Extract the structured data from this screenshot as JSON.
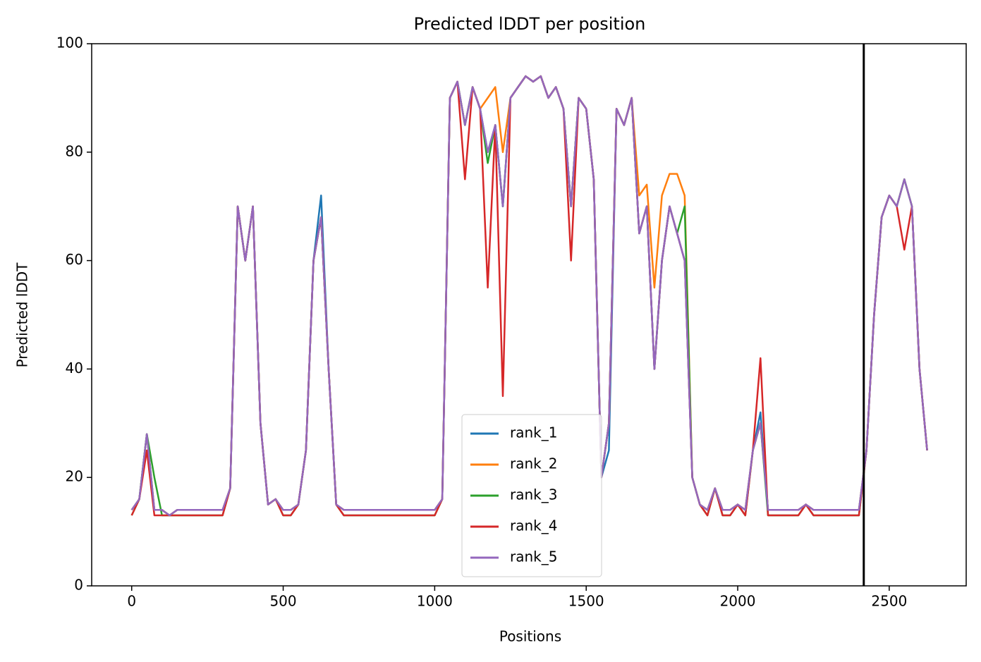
{
  "chart_data": {
    "type": "line",
    "title": "Predicted lDDT per position",
    "x_label": "Positions",
    "y_label": "Predicted lDDT",
    "x": [
      0,
      25,
      50,
      75,
      100,
      125,
      150,
      175,
      200,
      225,
      250,
      275,
      300,
      325,
      350,
      375,
      400,
      425,
      450,
      475,
      500,
      525,
      550,
      575,
      600,
      625,
      650,
      675,
      700,
      725,
      750,
      775,
      800,
      825,
      850,
      875,
      900,
      925,
      950,
      975,
      1000,
      1025,
      1050,
      1075,
      1100,
      1125,
      1150,
      1175,
      1200,
      1225,
      1250,
      1275,
      1300,
      1325,
      1350,
      1375,
      1400,
      1425,
      1450,
      1475,
      1500,
      1525,
      1550,
      1575,
      1600,
      1625,
      1650,
      1675,
      1700,
      1725,
      1750,
      1775,
      1800,
      1825,
      1850,
      1875,
      1900,
      1925,
      1950,
      1975,
      2000,
      2025,
      2050,
      2075,
      2100,
      2125,
      2150,
      2175,
      2200,
      2225,
      2250,
      2275,
      2300,
      2325,
      2350,
      2375,
      2400,
      2425,
      2450,
      2475,
      2500,
      2525,
      2550,
      2575,
      2600,
      2625
    ],
    "series": [
      {
        "name": "rank_1",
        "color": "#1f77b4",
        "values": [
          14,
          16,
          28,
          14,
          14,
          13,
          14,
          14,
          14,
          14,
          14,
          14,
          14,
          18,
          70,
          60,
          70,
          30,
          15,
          16,
          14,
          14,
          15,
          25,
          60,
          72,
          40,
          15,
          14,
          14,
          14,
          14,
          14,
          14,
          14,
          14,
          14,
          14,
          14,
          14,
          14,
          16,
          90,
          93,
          85,
          92,
          88,
          80,
          85,
          70,
          90,
          92,
          94,
          93,
          94,
          90,
          92,
          88,
          70,
          90,
          88,
          75,
          20,
          25,
          88,
          85,
          90,
          65,
          70,
          40,
          60,
          70,
          65,
          60,
          20,
          15,
          14,
          18,
          14,
          14,
          15,
          14,
          25,
          32,
          14,
          14,
          14,
          14,
          14,
          15,
          14,
          14,
          14,
          14,
          14,
          14,
          14,
          25,
          50,
          68,
          72,
          70,
          75,
          70,
          40,
          25
        ]
      },
      {
        "name": "rank_2",
        "color": "#ff7f0e",
        "values": [
          14,
          16,
          28,
          14,
          14,
          13,
          14,
          14,
          14,
          14,
          14,
          14,
          14,
          18,
          70,
          60,
          70,
          30,
          15,
          16,
          14,
          14,
          15,
          25,
          60,
          68,
          40,
          15,
          14,
          14,
          14,
          14,
          14,
          14,
          14,
          14,
          14,
          14,
          14,
          14,
          14,
          16,
          90,
          93,
          85,
          92,
          88,
          90,
          92,
          80,
          90,
          92,
          94,
          93,
          94,
          90,
          92,
          88,
          70,
          90,
          88,
          75,
          20,
          30,
          88,
          85,
          90,
          72,
          74,
          55,
          72,
          76,
          76,
          72,
          20,
          15,
          14,
          18,
          14,
          14,
          15,
          14,
          25,
          30,
          14,
          14,
          14,
          14,
          14,
          15,
          14,
          14,
          14,
          14,
          14,
          14,
          14,
          25,
          50,
          68,
          72,
          70,
          75,
          70,
          40,
          25
        ]
      },
      {
        "name": "rank_3",
        "color": "#2ca02c",
        "values": [
          13,
          16,
          28,
          20,
          13,
          13,
          13,
          13,
          13,
          13,
          13,
          13,
          13,
          18,
          70,
          60,
          70,
          30,
          15,
          16,
          13,
          13,
          15,
          25,
          60,
          68,
          40,
          15,
          13,
          13,
          13,
          13,
          13,
          13,
          13,
          13,
          13,
          13,
          13,
          13,
          13,
          16,
          90,
          93,
          85,
          92,
          88,
          78,
          85,
          70,
          90,
          92,
          94,
          93,
          94,
          90,
          92,
          88,
          70,
          90,
          88,
          75,
          20,
          30,
          88,
          85,
          90,
          65,
          70,
          40,
          60,
          70,
          65,
          70,
          20,
          15,
          13,
          18,
          13,
          13,
          15,
          13,
          25,
          30,
          13,
          13,
          13,
          13,
          13,
          15,
          13,
          13,
          13,
          13,
          13,
          13,
          13,
          25,
          50,
          68,
          72,
          70,
          75,
          70,
          40,
          25
        ]
      },
      {
        "name": "rank_4",
        "color": "#d62728",
        "values": [
          13,
          16,
          25,
          13,
          13,
          13,
          13,
          13,
          13,
          13,
          13,
          13,
          13,
          18,
          70,
          60,
          70,
          30,
          15,
          16,
          13,
          13,
          15,
          25,
          60,
          68,
          40,
          15,
          13,
          13,
          13,
          13,
          13,
          13,
          13,
          13,
          13,
          13,
          13,
          13,
          13,
          16,
          90,
          93,
          75,
          92,
          88,
          55,
          85,
          35,
          90,
          92,
          94,
          93,
          94,
          90,
          92,
          88,
          60,
          90,
          88,
          75,
          20,
          30,
          88,
          85,
          90,
          65,
          70,
          40,
          60,
          70,
          65,
          60,
          20,
          15,
          13,
          18,
          13,
          13,
          15,
          13,
          25,
          42,
          13,
          13,
          13,
          13,
          13,
          15,
          13,
          13,
          13,
          13,
          13,
          13,
          13,
          25,
          50,
          68,
          72,
          70,
          62,
          70,
          40,
          25
        ]
      },
      {
        "name": "rank_5",
        "color": "#9467bd",
        "values": [
          14,
          16,
          28,
          14,
          14,
          13,
          14,
          14,
          14,
          14,
          14,
          14,
          14,
          18,
          70,
          60,
          70,
          30,
          15,
          16,
          14,
          14,
          15,
          25,
          60,
          68,
          40,
          15,
          14,
          14,
          14,
          14,
          14,
          14,
          14,
          14,
          14,
          14,
          14,
          14,
          14,
          16,
          90,
          93,
          85,
          92,
          88,
          80,
          85,
          70,
          90,
          92,
          94,
          93,
          94,
          90,
          92,
          88,
          70,
          90,
          88,
          75,
          20,
          30,
          88,
          85,
          90,
          65,
          70,
          40,
          60,
          70,
          65,
          60,
          20,
          15,
          14,
          18,
          14,
          14,
          15,
          14,
          25,
          30,
          14,
          14,
          14,
          14,
          14,
          15,
          14,
          14,
          14,
          14,
          14,
          14,
          14,
          25,
          50,
          68,
          72,
          70,
          75,
          70,
          40,
          25
        ]
      }
    ],
    "vline": 2416,
    "xlim": [
      -132,
      2754
    ],
    "ylim": [
      0,
      100
    ],
    "xticks": [
      0,
      500,
      1000,
      1500,
      2000,
      2500
    ],
    "yticks": [
      0,
      20,
      40,
      60,
      80,
      100
    ],
    "legend": "lower center"
  }
}
